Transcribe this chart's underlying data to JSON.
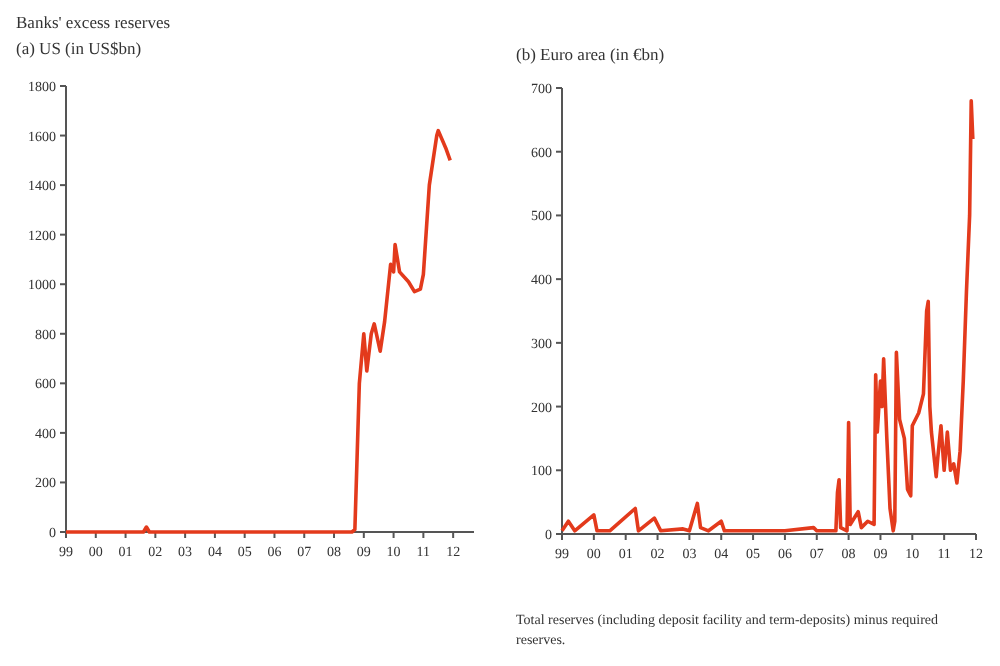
{
  "chart_data": [
    {
      "type": "line",
      "title": "Banks' excess reserves",
      "subtitle": "(a) US (in US$bn)",
      "grid": false,
      "line_style": "solid",
      "xlim": [
        1999,
        2012.7
      ],
      "xticks": [
        {
          "value": 1999,
          "label": "99"
        },
        {
          "value": 2000,
          "label": "00"
        },
        {
          "value": 2001,
          "label": "01"
        },
        {
          "value": 2002,
          "label": "02"
        },
        {
          "value": 2003,
          "label": "03"
        },
        {
          "value": 2004,
          "label": "04"
        },
        {
          "value": 2005,
          "label": "05"
        },
        {
          "value": 2006,
          "label": "06"
        },
        {
          "value": 2007,
          "label": "07"
        },
        {
          "value": 2008,
          "label": "08"
        },
        {
          "value": 2009,
          "label": "09"
        },
        {
          "value": 2010,
          "label": "10"
        },
        {
          "value": 2011,
          "label": "11"
        },
        {
          "value": 2012,
          "label": "12"
        }
      ],
      "ylim": [
        0,
        1800
      ],
      "yticks": [
        0,
        200,
        400,
        600,
        800,
        1000,
        1200,
        1400,
        1600,
        1800
      ],
      "series": [
        {
          "color": "#e33a1c",
          "x": [
            1999,
            2001.6,
            2001.7,
            2001.8,
            2008.6,
            2008.7,
            2008.85,
            2009.0,
            2009.1,
            2009.25,
            2009.35,
            2009.55,
            2009.7,
            2009.9,
            2010.0,
            2010.05,
            2010.2,
            2010.5,
            2010.7,
            2010.9,
            2011.0,
            2011.2,
            2011.45,
            2011.5,
            2011.75,
            2011.9
          ],
          "values": [
            0,
            0,
            20,
            0,
            0,
            10,
            600,
            800,
            650,
            800,
            840,
            730,
            850,
            1080,
            1050,
            1160,
            1050,
            1010,
            970,
            980,
            1040,
            1400,
            1600,
            1620,
            1550,
            1500
          ]
        }
      ]
    },
    {
      "type": "line",
      "title": "(b) Euro area (in €bn)",
      "grid": false,
      "line_style": "solid",
      "annotations": [
        "Total reserves (including deposit facility and term-deposits) minus required reserves."
      ],
      "xlim": [
        1999,
        2012
      ],
      "xticks": [
        {
          "value": 1999,
          "label": "99"
        },
        {
          "value": 2000,
          "label": "00"
        },
        {
          "value": 2001,
          "label": "01"
        },
        {
          "value": 2002,
          "label": "02"
        },
        {
          "value": 2003,
          "label": "03"
        },
        {
          "value": 2004,
          "label": "04"
        },
        {
          "value": 2005,
          "label": "05"
        },
        {
          "value": 2006,
          "label": "06"
        },
        {
          "value": 2007,
          "label": "07"
        },
        {
          "value": 2008,
          "label": "08"
        },
        {
          "value": 2009,
          "label": "09"
        },
        {
          "value": 2010,
          "label": "10"
        },
        {
          "value": 2011,
          "label": "11"
        },
        {
          "value": 2012,
          "label": "12"
        }
      ],
      "ylim": [
        0,
        700
      ],
      "yticks": [
        0,
        100,
        200,
        300,
        400,
        500,
        600,
        700
      ],
      "series": [
        {
          "color": "#e33a1c",
          "x": [
            1999,
            1999.2,
            1999.4,
            2000,
            2000.1,
            2000.5,
            2001.3,
            2001.4,
            2001.9,
            2002.1,
            2002.8,
            2003,
            2003.25,
            2003.35,
            2003.6,
            2004,
            2004.1,
            2005,
            2006,
            2006.9,
            2007,
            2007.6,
            2007.65,
            2007.7,
            2007.75,
            2007.95,
            2008,
            2008.05,
            2008.3,
            2008.4,
            2008.6,
            2008.8,
            2008.85,
            2008.9,
            2009,
            2009.05,
            2009.1,
            2009.2,
            2009.3,
            2009.4,
            2009.45,
            2009.5,
            2009.6,
            2009.75,
            2009.85,
            2009.95,
            2010,
            2010.2,
            2010.35,
            2010.45,
            2010.5,
            2010.55,
            2010.6,
            2010.75,
            2010.8,
            2010.9,
            2011,
            2011.1,
            2011.2,
            2011.3,
            2011.4,
            2011.5,
            2011.6,
            2011.7,
            2011.8,
            2011.85,
            2011.9
          ],
          "values": [
            5,
            20,
            5,
            30,
            5,
            5,
            40,
            5,
            25,
            5,
            8,
            5,
            48,
            10,
            5,
            20,
            5,
            5,
            5,
            10,
            5,
            5,
            65,
            85,
            10,
            5,
            175,
            15,
            35,
            10,
            20,
            15,
            250,
            160,
            240,
            200,
            275,
            150,
            40,
            5,
            20,
            285,
            180,
            150,
            70,
            60,
            170,
            190,
            220,
            350,
            365,
            200,
            160,
            90,
            120,
            170,
            100,
            160,
            100,
            110,
            80,
            130,
            240,
            380,
            500,
            680,
            620
          ]
        }
      ]
    }
  ]
}
